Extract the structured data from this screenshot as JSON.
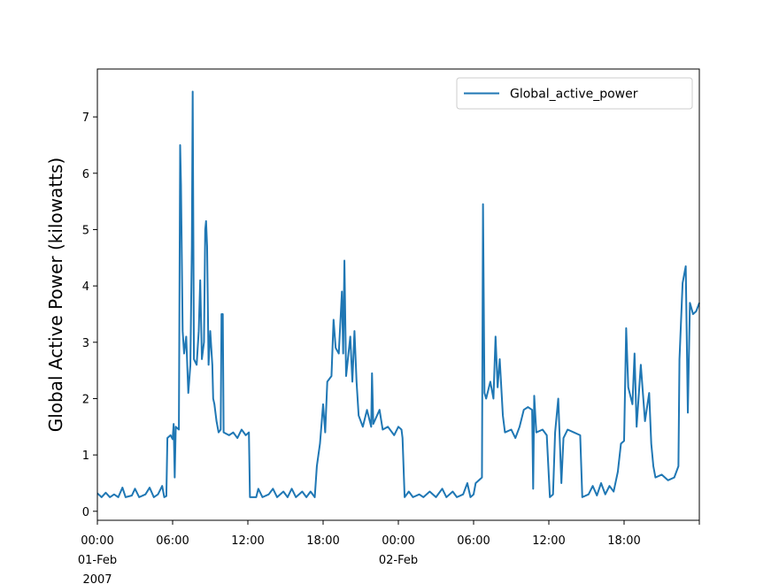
{
  "chart_data": {
    "type": "line",
    "ylabel": "Global Active Power (kilowatts)",
    "legend": "upper right",
    "xlim": [
      "2007-02-01 00:00",
      "2007-02-03 00:00"
    ],
    "xticks": [
      {
        "value": "2007-02-01 00:00",
        "label": "00:00\n01-Feb\n2007"
      },
      {
        "value": "2007-02-01 06:00",
        "label": "06:00"
      },
      {
        "value": "2007-02-01 12:00",
        "label": "12:00"
      },
      {
        "value": "2007-02-01 18:00",
        "label": "18:00"
      },
      {
        "value": "2007-02-02 00:00",
        "label": "00:00\n02-Feb"
      },
      {
        "value": "2007-02-02 06:00",
        "label": "06:00"
      },
      {
        "value": "2007-02-02 12:00",
        "label": "12:00"
      },
      {
        "value": "2007-02-02 18:00",
        "label": "18:00"
      },
      {
        "value": "2007-02-03 00:00",
        "label": null
      }
    ],
    "ylim": [
      -0.16,
      7.85
    ],
    "yticks": [
      0,
      1,
      2,
      3,
      4,
      5,
      6,
      7
    ],
    "x": [
      "2007-02-01 00:00",
      "2007-02-01 00:20",
      "2007-02-01 00:40",
      "2007-02-01 01:00",
      "2007-02-01 01:20",
      "2007-02-01 01:40",
      "2007-02-01 02:00",
      "2007-02-01 02:15",
      "2007-02-01 02:45",
      "2007-02-01 03:00",
      "2007-02-01 03:20",
      "2007-02-01 03:50",
      "2007-02-01 04:10",
      "2007-02-01 04:30",
      "2007-02-01 04:50",
      "2007-02-01 05:10",
      "2007-02-01 05:20",
      "2007-02-01 05:30",
      "2007-02-01 05:35",
      "2007-02-01 05:50",
      "2007-02-01 06:00",
      "2007-02-01 06:05",
      "2007-02-01 06:10",
      "2007-02-01 06:15",
      "2007-02-01 06:30",
      "2007-02-01 06:36",
      "2007-02-01 06:40",
      "2007-02-01 06:48",
      "2007-02-01 06:55",
      "2007-02-01 07:05",
      "2007-02-01 07:15",
      "2007-02-01 07:25",
      "2007-02-01 07:32",
      "2007-02-01 07:36",
      "2007-02-01 07:42",
      "2007-02-01 07:55",
      "2007-02-01 08:05",
      "2007-02-01 08:12",
      "2007-02-01 08:20",
      "2007-02-01 08:30",
      "2007-02-01 08:36",
      "2007-02-01 08:40",
      "2007-02-01 08:45",
      "2007-02-01 08:52",
      "2007-02-01 09:00",
      "2007-02-01 09:10",
      "2007-02-01 09:14",
      "2007-02-01 09:20",
      "2007-02-01 09:30",
      "2007-02-01 09:40",
      "2007-02-01 09:50",
      "2007-02-01 09:54",
      "2007-02-01 10:00",
      "2007-02-01 10:04",
      "2007-02-01 10:30",
      "2007-02-01 10:50",
      "2007-02-01 11:10",
      "2007-02-01 11:30",
      "2007-02-01 11:50",
      "2007-02-01 12:05",
      "2007-02-01 12:10",
      "2007-02-01 12:40",
      "2007-02-01 12:50",
      "2007-02-01 13:10",
      "2007-02-01 13:40",
      "2007-02-01 14:00",
      "2007-02-01 14:20",
      "2007-02-01 14:50",
      "2007-02-01 15:10",
      "2007-02-01 15:30",
      "2007-02-01 15:50",
      "2007-02-01 16:20",
      "2007-02-01 16:40",
      "2007-02-01 17:00",
      "2007-02-01 17:20",
      "2007-02-01 17:30",
      "2007-02-01 17:45",
      "2007-02-01 18:00",
      "2007-02-01 18:10",
      "2007-02-01 18:20",
      "2007-02-01 18:40",
      "2007-02-01 18:50",
      "2007-02-01 19:00",
      "2007-02-01 19:15",
      "2007-02-01 19:30",
      "2007-02-01 19:36",
      "2007-02-01 19:42",
      "2007-02-01 19:50",
      "2007-02-01 20:10",
      "2007-02-01 20:20",
      "2007-02-01 20:30",
      "2007-02-01 20:40",
      "2007-02-01 20:50",
      "2007-02-01 21:10",
      "2007-02-01 21:30",
      "2007-02-01 21:50",
      "2007-02-01 21:54",
      "2007-02-01 22:00",
      "2007-02-01 22:30",
      "2007-02-01 22:45",
      "2007-02-01 23:10",
      "2007-02-01 23:40",
      "2007-02-02 00:00",
      "2007-02-02 00:15",
      "2007-02-02 00:20",
      "2007-02-02 00:30",
      "2007-02-02 00:50",
      "2007-02-02 01:10",
      "2007-02-02 01:40",
      "2007-02-02 02:00",
      "2007-02-02 02:30",
      "2007-02-02 03:00",
      "2007-02-02 03:30",
      "2007-02-02 03:50",
      "2007-02-02 04:20",
      "2007-02-02 04:40",
      "2007-02-02 05:10",
      "2007-02-02 05:30",
      "2007-02-02 05:45",
      "2007-02-02 06:00",
      "2007-02-02 06:10",
      "2007-02-02 06:40",
      "2007-02-02 06:45",
      "2007-02-02 06:52",
      "2007-02-02 07:00",
      "2007-02-02 07:20",
      "2007-02-02 07:35",
      "2007-02-02 07:45",
      "2007-02-02 07:55",
      "2007-02-02 08:05",
      "2007-02-02 08:20",
      "2007-02-02 08:30",
      "2007-02-02 09:00",
      "2007-02-02 09:20",
      "2007-02-02 09:40",
      "2007-02-02 10:00",
      "2007-02-02 10:20",
      "2007-02-02 10:40",
      "2007-02-02 10:45",
      "2007-02-02 10:50",
      "2007-02-02 11:00",
      "2007-02-02 11:30",
      "2007-02-02 11:50",
      "2007-02-02 12:05",
      "2007-02-02 12:20",
      "2007-02-02 12:30",
      "2007-02-02 12:45",
      "2007-02-02 13:00",
      "2007-02-02 13:10",
      "2007-02-02 13:30",
      "2007-02-02 14:00",
      "2007-02-02 14:30",
      "2007-02-02 14:40",
      "2007-02-02 15:10",
      "2007-02-02 15:30",
      "2007-02-02 15:50",
      "2007-02-02 16:10",
      "2007-02-02 16:30",
      "2007-02-02 16:50",
      "2007-02-02 17:10",
      "2007-02-02 17:30",
      "2007-02-02 17:45",
      "2007-02-02 18:00",
      "2007-02-02 18:10",
      "2007-02-02 18:20",
      "2007-02-02 18:40",
      "2007-02-02 18:50",
      "2007-02-02 19:00",
      "2007-02-02 19:20",
      "2007-02-02 19:40",
      "2007-02-02 20:00",
      "2007-02-02 20:10",
      "2007-02-02 20:20",
      "2007-02-02 20:30",
      "2007-02-02 21:00",
      "2007-02-02 21:30",
      "2007-02-02 22:00",
      "2007-02-02 22:20",
      "2007-02-02 22:25",
      "2007-02-02 22:40",
      "2007-02-02 22:55",
      "2007-02-02 23:05",
      "2007-02-02 23:15",
      "2007-02-02 23:30",
      "2007-02-02 23:45",
      "2007-02-03 00:00"
    ],
    "series": [
      {
        "name": "Global_active_power",
        "color": "#1f77b4",
        "values": [
          0.32,
          0.25,
          0.33,
          0.25,
          0.3,
          0.25,
          0.42,
          0.25,
          0.28,
          0.4,
          0.25,
          0.3,
          0.42,
          0.25,
          0.3,
          0.45,
          0.25,
          0.27,
          1.3,
          1.35,
          1.28,
          1.55,
          0.6,
          1.5,
          1.45,
          6.5,
          5.8,
          3.2,
          2.8,
          3.1,
          2.1,
          2.6,
          4.7,
          7.45,
          2.7,
          2.6,
          3.2,
          4.1,
          2.7,
          3.0,
          5.0,
          5.15,
          4.7,
          2.6,
          3.2,
          2.6,
          2.0,
          1.9,
          1.6,
          1.4,
          1.45,
          3.5,
          3.5,
          1.4,
          1.35,
          1.4,
          1.3,
          1.45,
          1.35,
          1.4,
          0.25,
          0.25,
          0.4,
          0.25,
          0.3,
          0.4,
          0.25,
          0.35,
          0.25,
          0.4,
          0.25,
          0.35,
          0.25,
          0.35,
          0.25,
          0.8,
          1.2,
          1.9,
          1.4,
          2.3,
          2.4,
          3.4,
          2.9,
          2.8,
          3.9,
          2.8,
          4.45,
          2.4,
          3.1,
          2.3,
          3.2,
          2.3,
          1.7,
          1.5,
          1.8,
          1.5,
          2.45,
          1.55,
          1.8,
          1.45,
          1.5,
          1.35,
          1.5,
          1.45,
          1.3,
          0.25,
          0.35,
          0.25,
          0.3,
          0.25,
          0.35,
          0.25,
          0.4,
          0.25,
          0.35,
          0.25,
          0.3,
          0.5,
          0.25,
          0.3,
          0.5,
          0.6,
          5.45,
          2.1,
          2.0,
          2.3,
          2.0,
          3.1,
          2.2,
          2.7,
          1.7,
          1.4,
          1.45,
          1.3,
          1.5,
          1.8,
          1.85,
          1.8,
          0.4,
          2.05,
          1.4,
          1.45,
          1.35,
          0.25,
          0.3,
          1.4,
          2.0,
          0.5,
          1.3,
          1.45,
          1.4,
          1.35,
          0.25,
          0.3,
          0.45,
          0.28,
          0.5,
          0.3,
          0.45,
          0.35,
          0.7,
          1.2,
          1.25,
          3.25,
          2.2,
          1.9,
          2.8,
          1.5,
          2.6,
          1.6,
          2.1,
          1.2,
          0.8,
          0.6,
          0.65,
          0.55,
          0.6,
          0.8,
          2.7,
          4.05,
          4.35,
          1.75,
          3.7,
          3.5,
          3.55,
          3.7
        ]
      }
    ]
  }
}
